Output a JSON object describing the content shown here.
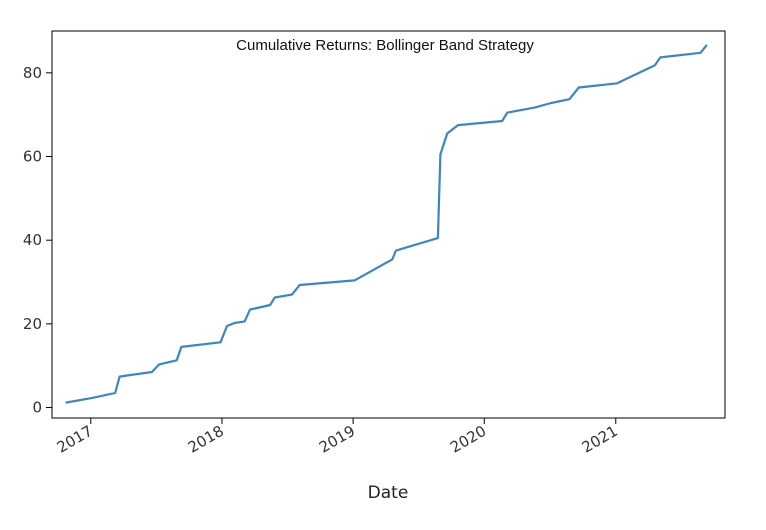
{
  "chart_data": {
    "type": "line",
    "title": "Cumulative Returns: Bollinger Band Strategy",
    "xlabel": "Date",
    "ylabel": "",
    "x_axis_type": "date",
    "xlim": [
      "2016-09-15",
      "2021-11-01"
    ],
    "ylim": [
      -2.5,
      90
    ],
    "grid": false,
    "legend": "none",
    "x_ticks": [
      {
        "date": "2017-01-01",
        "label": "2017"
      },
      {
        "date": "2018-01-01",
        "label": "2018"
      },
      {
        "date": "2019-01-01",
        "label": "2019"
      },
      {
        "date": "2020-01-01",
        "label": "2020"
      },
      {
        "date": "2021-01-01",
        "label": "2021"
      }
    ],
    "y_ticks": [
      0,
      20,
      40,
      60,
      80
    ],
    "line_color": "#3d87c0",
    "series": [
      {
        "name": "",
        "points": [
          {
            "x": "2016-10-25",
            "y": 1.2
          },
          {
            "x": "2017-01-05",
            "y": 2.3
          },
          {
            "x": "2017-03-10",
            "y": 3.5
          },
          {
            "x": "2017-03-22",
            "y": 7.4
          },
          {
            "x": "2017-06-20",
            "y": 8.5
          },
          {
            "x": "2017-07-10",
            "y": 10.3
          },
          {
            "x": "2017-08-28",
            "y": 11.3
          },
          {
            "x": "2017-09-10",
            "y": 14.5
          },
          {
            "x": "2017-12-28",
            "y": 15.6
          },
          {
            "x": "2018-01-15",
            "y": 19.5
          },
          {
            "x": "2018-02-05",
            "y": 20.2
          },
          {
            "x": "2018-03-05",
            "y": 20.6
          },
          {
            "x": "2018-03-20",
            "y": 23.4
          },
          {
            "x": "2018-05-15",
            "y": 24.5
          },
          {
            "x": "2018-05-28",
            "y": 26.3
          },
          {
            "x": "2018-07-15",
            "y": 27.0
          },
          {
            "x": "2018-08-05",
            "y": 29.3
          },
          {
            "x": "2019-01-05",
            "y": 30.4
          },
          {
            "x": "2019-04-20",
            "y": 35.4
          },
          {
            "x": "2019-04-30",
            "y": 37.5
          },
          {
            "x": "2019-08-25",
            "y": 40.5
          },
          {
            "x": "2019-09-01",
            "y": 60.5
          },
          {
            "x": "2019-09-20",
            "y": 65.5
          },
          {
            "x": "2019-10-20",
            "y": 67.5
          },
          {
            "x": "2020-02-20",
            "y": 68.5
          },
          {
            "x": "2020-03-05",
            "y": 70.5
          },
          {
            "x": "2020-05-20",
            "y": 71.7
          },
          {
            "x": "2020-07-05",
            "y": 72.8
          },
          {
            "x": "2020-08-25",
            "y": 73.7
          },
          {
            "x": "2020-09-20",
            "y": 76.5
          },
          {
            "x": "2021-01-05",
            "y": 77.5
          },
          {
            "x": "2021-02-05",
            "y": 78.8
          },
          {
            "x": "2021-04-20",
            "y": 81.8
          },
          {
            "x": "2021-05-05",
            "y": 83.7
          },
          {
            "x": "2021-08-25",
            "y": 84.8
          },
          {
            "x": "2021-09-10",
            "y": 86.5
          }
        ]
      }
    ]
  }
}
